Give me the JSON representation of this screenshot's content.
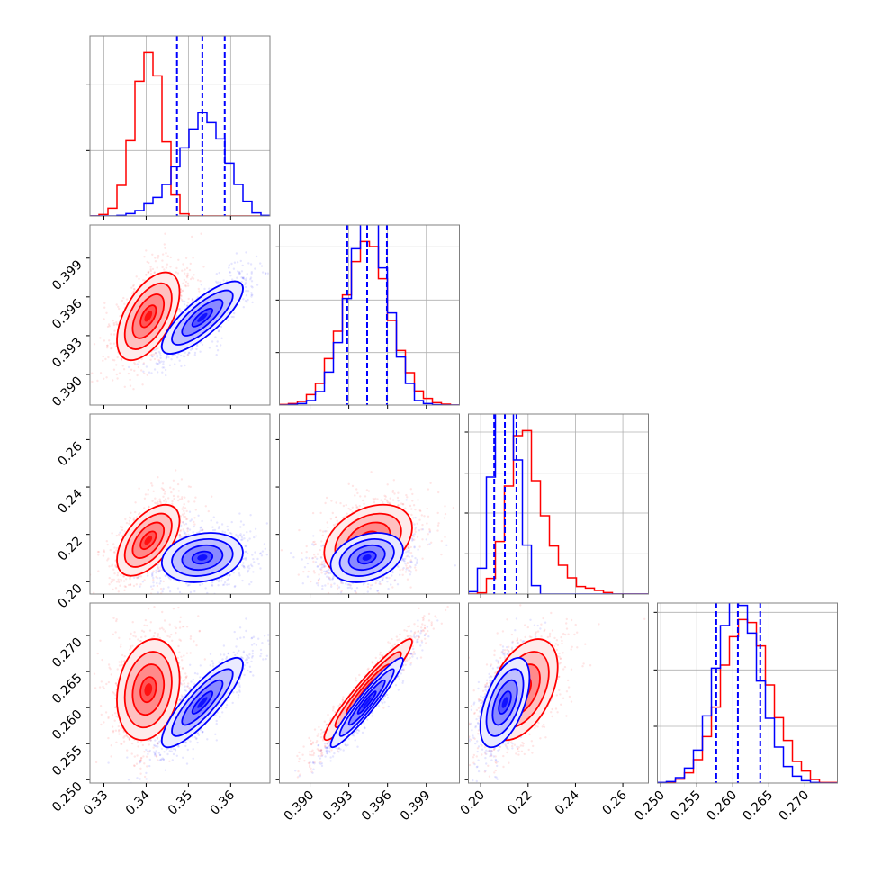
{
  "chart_data": {
    "type": "corner",
    "title": "",
    "grid_on_diagonal": true,
    "contour_levels_sigma": [
      0.5,
      1,
      1.5,
      2
    ],
    "parameters": [
      {
        "range": [
          0.3267,
          0.3693
        ],
        "ticks": [
          0.33,
          0.34,
          0.35,
          0.36
        ],
        "tick_labels": [
          "0.33",
          "0.34",
          "0.35",
          "0.36"
        ]
      },
      {
        "range": [
          0.38763,
          0.40156
        ],
        "ticks": [
          0.39,
          0.393,
          0.396,
          0.399
        ],
        "tick_labels": [
          "0.390",
          "0.393",
          "0.396",
          "0.399"
        ]
      },
      {
        "range": [
          0.1948,
          0.2708
        ],
        "ticks": [
          0.2,
          0.22,
          0.24,
          0.26
        ],
        "tick_labels": [
          "0.20",
          "0.22",
          "0.24",
          "0.26"
        ]
      },
      {
        "range": [
          0.24954,
          0.2745
        ],
        "ticks": [
          0.25,
          0.255,
          0.26,
          0.265,
          0.27
        ],
        "tick_labels": [
          "0.250",
          "0.255",
          "0.260",
          "0.265",
          "0.270"
        ]
      }
    ],
    "series": [
      {
        "color": "#ff0000",
        "mean": [
          0.3405,
          0.3945,
          0.2175,
          0.2625
        ],
        "std": [
          0.0037,
          0.0017,
          0.0075,
          0.0035
        ],
        "corr": {
          "0-1": 0.55,
          "0-2": 0.55,
          "0-3": 0.2,
          "1-2": 0.35,
          "1-3": 0.95,
          "2-3": 0.45
        }
      },
      {
        "color": "#0000ff",
        "mean": [
          0.3533,
          0.3944,
          0.2102,
          0.2607
        ],
        "std": [
          0.0048,
          0.0014,
          0.0052,
          0.0031
        ],
        "corr": {
          "0-1": 0.8,
          "0-2": 0.2,
          "0-3": 0.85,
          "1-2": 0.3,
          "1-3": 0.95,
          "2-3": 0.55
        }
      }
    ],
    "histograms": [
      {
        "ylim": [
          0,
          600
        ],
        "yticks": [
          218,
          437
        ],
        "counts": [
          [
            0,
            5,
            26,
            102,
            251,
            449,
            545,
            467,
            247,
            70,
            7,
            0,
            0,
            0,
            0,
            0,
            0,
            0,
            0,
            0
          ],
          [
            0,
            0,
            0,
            2,
            8,
            18,
            41,
            62,
            105,
            164,
            227,
            290,
            344,
            311,
            257,
            176,
            105,
            49,
            10,
            2
          ]
        ],
        "quantiles": [
          0.3473,
          0.3533,
          0.3586
        ]
      },
      {
        "ylim": [
          0,
          600
        ],
        "yticks": [
          175,
          350,
          527
        ],
        "counts": [
          [
            2,
            5,
            12,
            35,
            72,
            155,
            246,
            367,
            478,
            545,
            528,
            421,
            282,
            182,
            108,
            47,
            22,
            8,
            3,
            0
          ],
          [
            0,
            2,
            5,
            15,
            45,
            110,
            208,
            355,
            521,
            615,
            615,
            457,
            307,
            160,
            72,
            15,
            5,
            1,
            0,
            0
          ]
        ],
        "quantiles": [
          0.39288,
          0.39442,
          0.39595
        ]
      },
      {
        "ylim": [
          0,
          600
        ],
        "yticks": [
          134,
          270,
          403,
          540
        ],
        "counts": [
          [
            0,
            4,
            52,
            175,
            360,
            528,
            545,
            378,
            261,
            160,
            96,
            54,
            25,
            20,
            12,
            5,
            0,
            0,
            0,
            0
          ],
          [
            8,
            86,
            390,
            620,
            620,
            447,
            163,
            28,
            0,
            0,
            0,
            0,
            0,
            0,
            0,
            0,
            0,
            0,
            0,
            0
          ]
        ],
        "quantiles": [
          0.2057,
          0.2102,
          0.2151
        ]
      },
      {
        "ylim": [
          0,
          600
        ],
        "yticks": [
          189,
          377,
          569
        ],
        "counts": [
          [
            1,
            3,
            13,
            34,
            78,
            155,
            253,
            393,
            488,
            545,
            535,
            457,
            327,
            218,
            142,
            72,
            40,
            12,
            2,
            2
          ],
          [
            2,
            5,
            18,
            50,
            110,
            224,
            383,
            525,
            620,
            592,
            500,
            340,
            216,
            120,
            55,
            23,
            8,
            2,
            0,
            0
          ]
        ],
        "quantiles": [
          0.2577,
          0.2607,
          0.2638
        ]
      }
    ]
  }
}
